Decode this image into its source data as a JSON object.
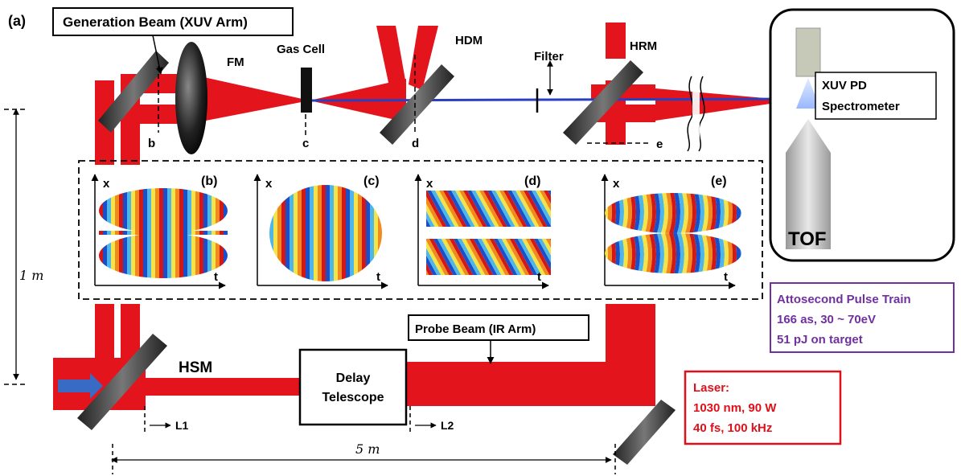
{
  "panel_label": "(a)",
  "labels": {
    "generation_beam": "Generation Beam (XUV Arm)",
    "fm": "FM",
    "gas_cell": "Gas Cell",
    "hdm": "HDM",
    "filter": "Filter",
    "hrm": "HRM",
    "xuv_pd_line1": "XUV PD",
    "xuv_pd_line2": "Spectrometer",
    "tof": "TOF",
    "plane_b": "b",
    "plane_c": "c",
    "plane_d": "d",
    "plane_e": "e",
    "hsm": "HSM",
    "delay_line1": "Delay",
    "delay_line2": "Telescope",
    "probe_beam": "Probe Beam (IR Arm)",
    "l1": "L1",
    "l2": "L2",
    "dim_1m": "1 m",
    "dim_5m": "5 m"
  },
  "insets": [
    {
      "label": "(b)",
      "x_axis": "x",
      "t_axis": "t",
      "pattern": "split-vertical-fringes"
    },
    {
      "label": "(c)",
      "x_axis": "x",
      "t_axis": "t",
      "pattern": "vertical-fringes"
    },
    {
      "label": "(d)",
      "x_axis": "x",
      "t_axis": "t",
      "pattern": "tilted-fringes"
    },
    {
      "label": "(e)",
      "x_axis": "x",
      "t_axis": "t",
      "pattern": "split-curved-fringes"
    }
  ],
  "attosecond": {
    "line1": "Attosecond Pulse Train",
    "line2": "166 as, 30 ~ 70eV",
    "line3": "51 pJ on target"
  },
  "laser": {
    "line1": "Laser:",
    "line2": "1030 nm, 90 W",
    "line3": "40 fs, 100 kHz"
  },
  "colors": {
    "beam_red": "#e3141c",
    "xuv_blue": "#2a3fbf",
    "purple_text": "#7030a0",
    "laser_red": "#e0101a"
  }
}
